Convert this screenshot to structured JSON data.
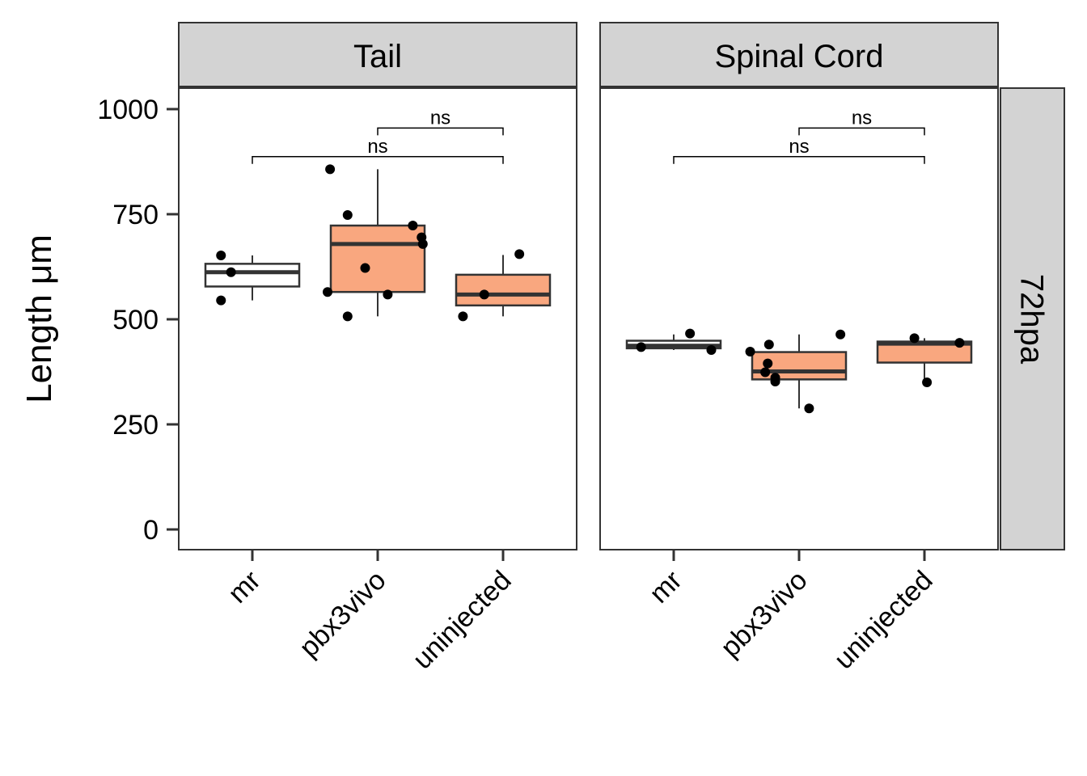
{
  "chart_data": {
    "type": "boxplot",
    "ylabel": "Length μm",
    "xlabel": "",
    "ylim": [
      -45,
      1000
    ],
    "yticks": [
      0,
      250,
      500,
      750,
      1000
    ],
    "categories": [
      "mr",
      "pbx3vivo",
      "uninjected"
    ],
    "row_facet": "72hpa",
    "box_colors": {
      "mr": "#ffffff",
      "pbx3vivo": "#f9a77f",
      "uninjected": "#f9a77f"
    },
    "panels": [
      {
        "facet": "Tail",
        "boxes": [
          {
            "category": "mr",
            "lower_whisker": 545,
            "q1": 578,
            "median": 612,
            "q3": 632,
            "upper_whisker": 652
          },
          {
            "category": "pbx3vivo",
            "lower_whisker": 507,
            "q1": 565,
            "median": 679,
            "q3": 723,
            "upper_whisker": 857
          },
          {
            "category": "uninjected",
            "lower_whisker": 507,
            "q1": 533,
            "median": 559,
            "q3": 606,
            "upper_whisker": 653
          }
        ],
        "points": [
          {
            "category": "mr",
            "jitter": -0.25,
            "y": 652
          },
          {
            "category": "mr",
            "jitter": -0.17,
            "y": 612
          },
          {
            "category": "mr",
            "jitter": -0.25,
            "y": 545
          },
          {
            "category": "pbx3vivo",
            "jitter": -0.38,
            "y": 857
          },
          {
            "category": "pbx3vivo",
            "jitter": -0.24,
            "y": 748
          },
          {
            "category": "pbx3vivo",
            "jitter": 0.28,
            "y": 723
          },
          {
            "category": "pbx3vivo",
            "jitter": 0.35,
            "y": 695
          },
          {
            "category": "pbx3vivo",
            "jitter": 0.36,
            "y": 679
          },
          {
            "category": "pbx3vivo",
            "jitter": -0.1,
            "y": 622
          },
          {
            "category": "pbx3vivo",
            "jitter": -0.4,
            "y": 565
          },
          {
            "category": "pbx3vivo",
            "jitter": 0.08,
            "y": 559
          },
          {
            "category": "pbx3vivo",
            "jitter": -0.24,
            "y": 507
          },
          {
            "category": "uninjected",
            "jitter": 0.13,
            "y": 655
          },
          {
            "category": "uninjected",
            "jitter": -0.15,
            "y": 559
          },
          {
            "category": "uninjected",
            "jitter": -0.32,
            "y": 507
          }
        ],
        "comparisons": [
          {
            "from": "pbx3vivo",
            "to": "uninjected",
            "label": "ns",
            "y": 955
          },
          {
            "from": "mr",
            "to": "uninjected",
            "label": "ns",
            "y": 887
          }
        ]
      },
      {
        "facet": "Spinal Cord",
        "boxes": [
          {
            "category": "mr",
            "lower_whisker": 427,
            "q1": 431,
            "median": 437,
            "q3": 449,
            "upper_whisker": 464
          },
          {
            "category": "pbx3vivo",
            "lower_whisker": 288,
            "q1": 357,
            "median": 376,
            "q3": 422,
            "upper_whisker": 464
          },
          {
            "category": "uninjected",
            "lower_whisker": 350,
            "q1": 397,
            "median": 442,
            "q3": 447,
            "upper_whisker": 455
          }
        ],
        "points": [
          {
            "category": "mr",
            "jitter": 0.13,
            "y": 466
          },
          {
            "category": "mr",
            "jitter": -0.26,
            "y": 434
          },
          {
            "category": "mr",
            "jitter": 0.3,
            "y": 427
          },
          {
            "category": "pbx3vivo",
            "jitter": 0.33,
            "y": 464
          },
          {
            "category": "pbx3vivo",
            "jitter": -0.24,
            "y": 440
          },
          {
            "category": "pbx3vivo",
            "jitter": -0.39,
            "y": 423
          },
          {
            "category": "pbx3vivo",
            "jitter": -0.25,
            "y": 395
          },
          {
            "category": "pbx3vivo",
            "jitter": -0.27,
            "y": 374
          },
          {
            "category": "pbx3vivo",
            "jitter": -0.19,
            "y": 361
          },
          {
            "category": "pbx3vivo",
            "jitter": -0.19,
            "y": 352
          },
          {
            "category": "pbx3vivo",
            "jitter": 0.08,
            "y": 288
          },
          {
            "category": "uninjected",
            "jitter": -0.08,
            "y": 455
          },
          {
            "category": "uninjected",
            "jitter": 0.28,
            "y": 444
          },
          {
            "category": "uninjected",
            "jitter": 0.02,
            "y": 350
          }
        ],
        "comparisons": [
          {
            "from": "pbx3vivo",
            "to": "uninjected",
            "label": "ns",
            "y": 955
          },
          {
            "from": "mr",
            "to": "uninjected",
            "label": "ns",
            "y": 887
          }
        ]
      }
    ]
  }
}
